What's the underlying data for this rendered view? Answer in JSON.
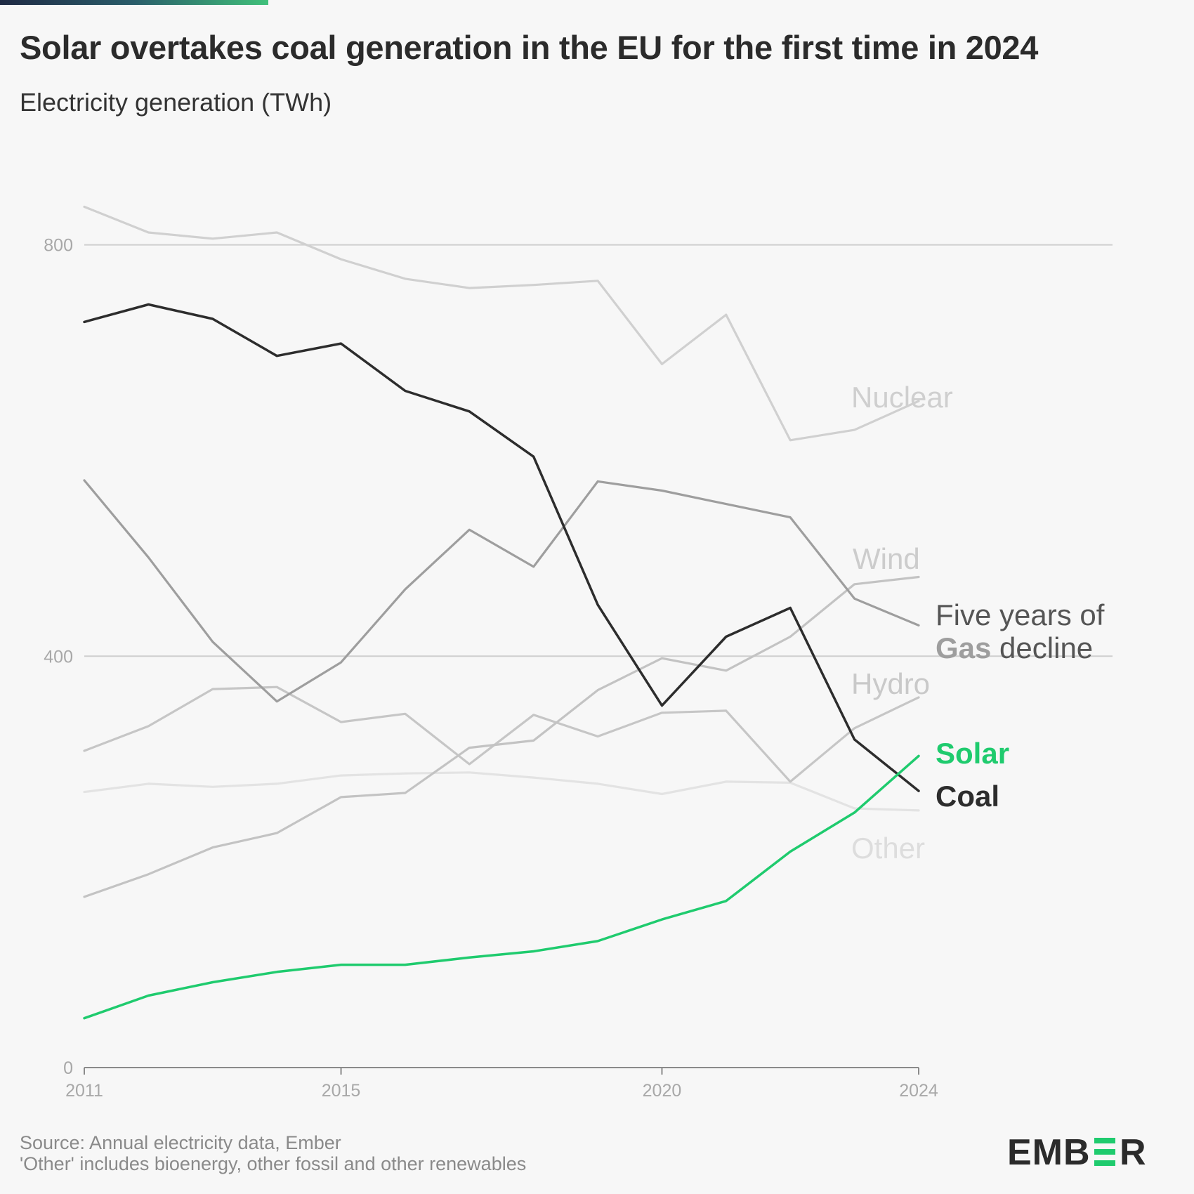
{
  "header": {
    "title": "Solar overtakes coal generation in the EU for the first time in 2024",
    "subtitle": "Electricity generation (TWh)"
  },
  "footer": {
    "source": "Source: Annual electricity data, Ember",
    "note": "'Other' includes bioenergy, other fossil and other renewables"
  },
  "brand": {
    "logo_text": "EMBER",
    "accent_color": "#1fcb6e"
  },
  "chart_data": {
    "type": "line",
    "x": [
      2011,
      2012,
      2013,
      2014,
      2015,
      2016,
      2017,
      2018,
      2019,
      2020,
      2021,
      2022,
      2023,
      2024
    ],
    "xticks": [
      2011,
      2015,
      2020,
      2024
    ],
    "yticks": [
      0,
      400,
      800
    ],
    "ylim": [
      0,
      840
    ],
    "grid": true,
    "series": [
      {
        "name": "Nuclear",
        "color": "#d0d0d0",
        "label_color": "#cfcfcf",
        "label_weight": "normal",
        "values": [
          837,
          812,
          806,
          812,
          786,
          767,
          758,
          761,
          765,
          684,
          732,
          610,
          620,
          648
        ]
      },
      {
        "name": "Other",
        "color": "#e3e3e3",
        "label_color": "#dddddd",
        "label_weight": "normal",
        "values": [
          268,
          276,
          273,
          276,
          284,
          286,
          287,
          282,
          276,
          266,
          278,
          277,
          252,
          250
        ]
      },
      {
        "name": "Hydro",
        "color": "#c6c6c6",
        "label_color": "#c9c9c9",
        "label_weight": "normal",
        "values": [
          308,
          332,
          368,
          370,
          336,
          344,
          295,
          343,
          322,
          345,
          347,
          278,
          330,
          360
        ]
      },
      {
        "name": "Wind",
        "color": "#c3c3c3",
        "label_color": "#cccccc",
        "label_weight": "normal",
        "values": [
          166,
          188,
          214,
          228,
          263,
          267,
          311,
          318,
          367,
          398,
          386,
          419,
          470,
          477
        ]
      },
      {
        "name": "Gas",
        "color": "#9e9e9e",
        "label_color": "#9e9e9e",
        "label_weight": "bold",
        "values": [
          571,
          496,
          414,
          356,
          394,
          465,
          523,
          487,
          570,
          561,
          548,
          535,
          456,
          430
        ]
      },
      {
        "name": "Coal",
        "color": "#2d2d2d",
        "label_color": "#2d2d2d",
        "label_weight": "bold",
        "values": [
          725,
          742,
          728,
          692,
          704,
          658,
          638,
          594,
          450,
          352,
          419,
          447,
          319,
          269
        ]
      },
      {
        "name": "Solar",
        "color": "#1fcb6e",
        "label_color": "#1fcb6e",
        "label_weight": "bold",
        "values": [
          48,
          70,
          83,
          93,
          100,
          100,
          107,
          113,
          123,
          144,
          162,
          210,
          248,
          303
        ]
      }
    ],
    "annotations": {
      "gas_line1": "Five years of",
      "gas_bold": "Gas",
      "gas_rest": " decline"
    }
  }
}
